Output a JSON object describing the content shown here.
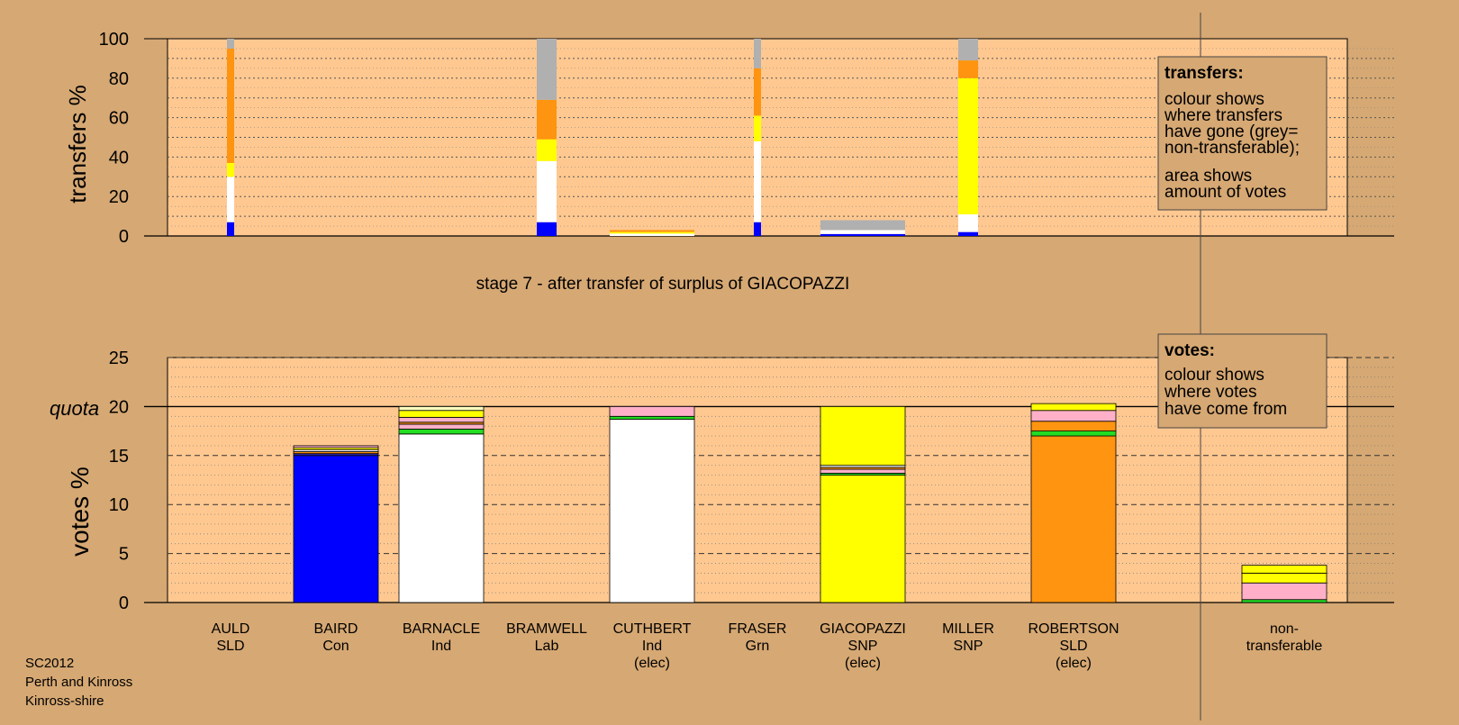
{
  "stage_title": "stage 7 - after transfer of surplus of GIACOPAZZI",
  "footer": [
    "SC2012",
    "Perth and Kinross",
    "Kinross-shire"
  ],
  "legend_transfers": {
    "title": "transfers:",
    "para1": [
      "colour shows",
      "where transfers",
      "have gone (grey=",
      "non-transferable);"
    ],
    "para2": [
      "area shows",
      "amount of votes"
    ]
  },
  "legend_votes": {
    "title": "votes:",
    "para1": [
      "colour shows",
      "where votes",
      "have come from"
    ]
  },
  "colors": {
    "background": "#d6a873",
    "plot_bg": "#ffc890",
    "AULD": "#ff9410",
    "BAIRD": "#0000ff",
    "BARNACLE": "#ffffff",
    "BRAMWELL": "#ff0000",
    "CUTHBERT": "#ffffff",
    "FRASER": "#22dd22",
    "GIACOPAZZI": "#ffff00",
    "MILLER": "#ffff00",
    "ROBERTSON": "#ff9410",
    "pink": "#ffb0c8",
    "nontransferable": "#b0b0b0"
  },
  "chart_data": [
    {
      "type": "bar",
      "stacked": true,
      "ylabel": "transfers %",
      "ylim": [
        0,
        100
      ],
      "yticks": [
        0,
        20,
        40,
        60,
        80,
        100
      ],
      "categories": [
        "AULD",
        "BAIRD",
        "BARNACLE",
        "BRAMWELL",
        "CUTHBERT",
        "FRASER",
        "GIACOPAZZI",
        "MILLER",
        "ROBERTSON",
        "non-transferable"
      ],
      "bars": [
        {
          "category": "AULD",
          "width": "thin",
          "segments": [
            {
              "color": "#0000ff",
              "from": 0,
              "to": 7
            },
            {
              "color": "#ffffff",
              "from": 7,
              "to": 30
            },
            {
              "color": "#ffff00",
              "from": 30,
              "to": 37
            },
            {
              "color": "#ff9410",
              "from": 37,
              "to": 95
            },
            {
              "color": "#b0b0b0",
              "from": 95,
              "to": 100
            }
          ]
        },
        {
          "category": "BRAMWELL",
          "width": "medium",
          "segments": [
            {
              "color": "#0000ff",
              "from": 0,
              "to": 7
            },
            {
              "color": "#ffffff",
              "from": 7,
              "to": 38
            },
            {
              "color": "#ffff00",
              "from": 38,
              "to": 49
            },
            {
              "color": "#ff9410",
              "from": 49,
              "to": 69
            },
            {
              "color": "#b0b0b0",
              "from": 69,
              "to": 100
            }
          ]
        },
        {
          "category": "CUTHBERT",
          "width": "full",
          "segments": [
            {
              "color": "#ffffff",
              "from": 0,
              "to": 1.2
            },
            {
              "color": "#ffff00",
              "from": 1.2,
              "to": 2
            },
            {
              "color": "#ff9410",
              "from": 2,
              "to": 3
            }
          ]
        },
        {
          "category": "FRASER",
          "width": "thin",
          "segments": [
            {
              "color": "#0000ff",
              "from": 0,
              "to": 7
            },
            {
              "color": "#ffffff",
              "from": 7,
              "to": 48
            },
            {
              "color": "#ffff00",
              "from": 48,
              "to": 61
            },
            {
              "color": "#ff9410",
              "from": 61,
              "to": 85
            },
            {
              "color": "#b0b0b0",
              "from": 85,
              "to": 100
            }
          ]
        },
        {
          "category": "GIACOPAZZI",
          "width": "full",
          "segments": [
            {
              "color": "#0000ff",
              "from": 0,
              "to": 1
            },
            {
              "color": "#ffffff",
              "from": 1,
              "to": 3
            },
            {
              "color": "#b0b0b0",
              "from": 3,
              "to": 8
            }
          ]
        },
        {
          "category": "MILLER",
          "width": "medium",
          "segments": [
            {
              "color": "#0000ff",
              "from": 0,
              "to": 2
            },
            {
              "color": "#ffffff",
              "from": 2,
              "to": 11
            },
            {
              "color": "#ffff00",
              "from": 11,
              "to": 80
            },
            {
              "color": "#ff9410",
              "from": 80,
              "to": 89
            },
            {
              "color": "#b0b0b0",
              "from": 89,
              "to": 100
            }
          ]
        }
      ]
    },
    {
      "type": "bar",
      "stacked": true,
      "ylabel": "votes %",
      "ylim": [
        0,
        25
      ],
      "yticks": [
        0,
        5,
        10,
        15,
        20,
        25
      ],
      "quota": 20,
      "quota_label": "quota",
      "categories": [
        {
          "name": "AULD",
          "party": "SLD",
          "note": ""
        },
        {
          "name": "BAIRD",
          "party": "Con",
          "note": ""
        },
        {
          "name": "BARNACLE",
          "party": "Ind",
          "note": ""
        },
        {
          "name": "BRAMWELL",
          "party": "Lab",
          "note": ""
        },
        {
          "name": "CUTHBERT",
          "party": "Ind",
          "note": "(elec)"
        },
        {
          "name": "FRASER",
          "party": "Grn",
          "note": ""
        },
        {
          "name": "GIACOPAZZI",
          "party": "SNP",
          "note": "(elec)"
        },
        {
          "name": "MILLER",
          "party": "SNP",
          "note": ""
        },
        {
          "name": "ROBERTSON",
          "party": "SLD",
          "note": "(elec)"
        },
        {
          "name": "non-",
          "party": "transferable",
          "note": ""
        }
      ],
      "bars": [
        {
          "category": "BAIRD",
          "segments": [
            {
              "color": "#0000ff",
              "from": 0,
              "to": 15.0
            },
            {
              "color": "#2222aa",
              "from": 15.0,
              "to": 15.2
            },
            {
              "color": "#ff9410",
              "from": 15.2,
              "to": 15.4
            },
            {
              "color": "#ffffff",
              "from": 15.4,
              "to": 15.6
            },
            {
              "color": "#ffff00",
              "from": 15.6,
              "to": 15.8
            },
            {
              "color": "#ffb0c8",
              "from": 15.8,
              "to": 16.0
            }
          ]
        },
        {
          "category": "BARNACLE",
          "segments": [
            {
              "color": "#ffffff",
              "from": 0,
              "to": 17.2
            },
            {
              "color": "#22dd22",
              "from": 17.2,
              "to": 17.7
            },
            {
              "color": "#ffb0c8",
              "from": 17.7,
              "to": 18.2
            },
            {
              "color": "#ff9410",
              "from": 18.2,
              "to": 18.4
            },
            {
              "color": "#ffb0c8",
              "from": 18.4,
              "to": 18.9
            },
            {
              "color": "#ffff00",
              "from": 18.9,
              "to": 19.6
            },
            {
              "color": "#ffffc0",
              "from": 19.6,
              "to": 20.0
            }
          ]
        },
        {
          "category": "CUTHBERT",
          "segments": [
            {
              "color": "#ffffff",
              "from": 0,
              "to": 18.7
            },
            {
              "color": "#22dd22",
              "from": 18.7,
              "to": 19.0
            },
            {
              "color": "#ffb0c8",
              "from": 19.0,
              "to": 20.0
            }
          ]
        },
        {
          "category": "GIACOPAZZI",
          "segments": [
            {
              "color": "#ffff00",
              "from": 0,
              "to": 13.0
            },
            {
              "color": "#22dd22",
              "from": 13.0,
              "to": 13.2
            },
            {
              "color": "#ffb0c8",
              "from": 13.2,
              "to": 13.6
            },
            {
              "color": "#ff9410",
              "from": 13.6,
              "to": 13.8
            },
            {
              "color": "#ffffff",
              "from": 13.8,
              "to": 14.0
            },
            {
              "color": "#ffff00",
              "from": 14.0,
              "to": 20.0
            }
          ]
        },
        {
          "category": "ROBERTSON",
          "segments": [
            {
              "color": "#ff9410",
              "from": 0,
              "to": 17.0
            },
            {
              "color": "#22dd22",
              "from": 17.0,
              "to": 17.5
            },
            {
              "color": "#ff9410",
              "from": 17.5,
              "to": 18.5
            },
            {
              "color": "#ffb0c8",
              "from": 18.5,
              "to": 19.6
            },
            {
              "color": "#ffff00",
              "from": 19.6,
              "to": 20.3
            }
          ]
        },
        {
          "category": "non-transferable",
          "segments": [
            {
              "color": "#22dd22",
              "from": 0,
              "to": 0.3
            },
            {
              "color": "#ffb0c8",
              "from": 0.3,
              "to": 2.0
            },
            {
              "color": "#ffff00",
              "from": 2.0,
              "to": 3.0
            },
            {
              "color": "#ffff00",
              "from": 3.0,
              "to": 3.8
            }
          ]
        }
      ]
    }
  ]
}
